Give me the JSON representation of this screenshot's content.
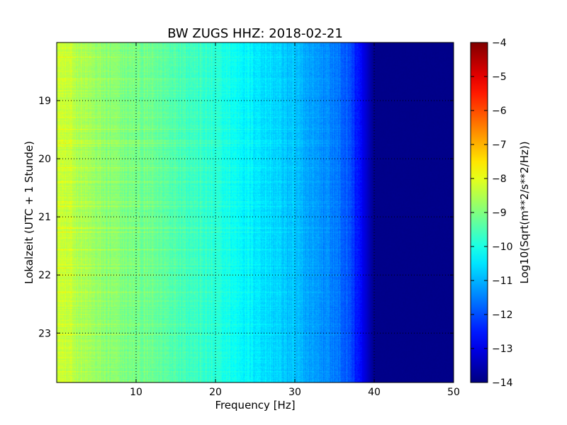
{
  "chart_data": {
    "type": "heatmap",
    "title": "BW ZUGS HHZ: 2018-02-21",
    "xlabel": "Frequency [Hz]",
    "ylabel": "Lokalzeit (UTC + 1 Stunde)",
    "xlim": [
      0,
      50
    ],
    "ylim": [
      18.0,
      23.85
    ],
    "y_inverted": true,
    "xticks": [
      10,
      20,
      30,
      40,
      50
    ],
    "yticks": [
      19,
      20,
      21,
      22,
      23
    ],
    "grid": true,
    "colormap": "jet",
    "colorbar": {
      "label": "Log10(Sqrt(m**2/s**2/Hz))",
      "range": [
        -14,
        -4
      ],
      "ticks": [
        -4,
        -5,
        -6,
        -7,
        -8,
        -9,
        -10,
        -11,
        -12,
        -13,
        -14
      ]
    },
    "spectrum_profile": {
      "frequency_hz": [
        0,
        2,
        5,
        10,
        15,
        20,
        25,
        30,
        35,
        37,
        38,
        39,
        40,
        50
      ],
      "log10_amplitude": [
        -8.2,
        -8.4,
        -8.8,
        -9.1,
        -9.4,
        -9.9,
        -10.4,
        -10.9,
        -11.5,
        -12.0,
        -12.6,
        -13.2,
        -13.9,
        -13.9
      ]
    }
  }
}
